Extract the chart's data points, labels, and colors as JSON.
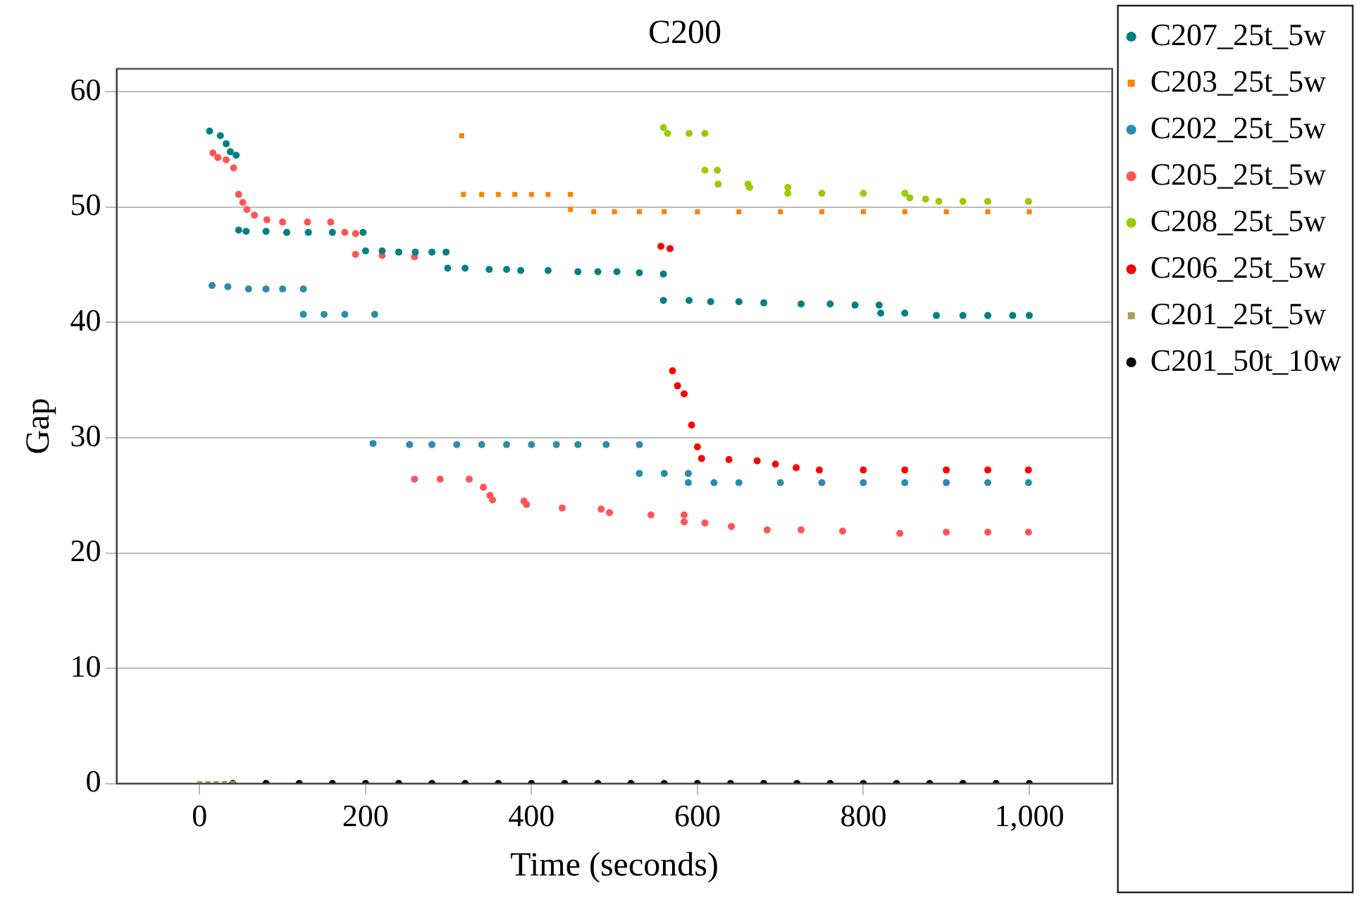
{
  "chart_data": {
    "type": "scatter",
    "title": "C200",
    "xlabel": "Time (seconds)",
    "ylabel": "Gap",
    "xlim": [
      -100,
      1100
    ],
    "xticks": [
      0,
      200,
      400,
      600,
      800,
      {
        "value": 1000,
        "label": "1,000"
      }
    ],
    "ylim": [
      0,
      62
    ],
    "yticks": [
      0,
      10,
      20,
      30,
      40,
      50,
      60
    ],
    "grid": "y",
    "legend": "right",
    "marker": "circle",
    "series": [
      {
        "name": "C207_25t_5w",
        "color": "#008080",
        "x": [
          12,
          25,
          32,
          37,
          44,
          47,
          56,
          80,
          105,
          131,
          160,
          197,
          200,
          220,
          240,
          260,
          280,
          297,
          299,
          320,
          349,
          370,
          387,
          420,
          456,
          480,
          503,
          530,
          559,
          559,
          590,
          616,
          650,
          680,
          725,
          760,
          790,
          819,
          821,
          850,
          888,
          920,
          950,
          980,
          1000
        ],
        "values": [
          56.6,
          56.2,
          55.5,
          54.8,
          54.5,
          48.0,
          47.9,
          47.9,
          47.8,
          47.8,
          47.8,
          47.8,
          46.2,
          46.2,
          46.1,
          46.1,
          46.1,
          46.1,
          44.7,
          44.7,
          44.6,
          44.6,
          44.5,
          44.5,
          44.4,
          44.4,
          44.4,
          44.3,
          44.2,
          41.9,
          41.9,
          41.8,
          41.8,
          41.7,
          41.6,
          41.6,
          41.5,
          41.5,
          40.8,
          40.8,
          40.6,
          40.6,
          40.6,
          40.6,
          40.6
        ]
      },
      {
        "name": "C203_25t_5w",
        "color": "#ff8000",
        "marker": "square",
        "x": [
          316,
          318,
          340,
          360,
          380,
          400,
          420,
          447,
          447,
          475,
          500,
          530,
          560,
          600,
          650,
          700,
          750,
          800,
          850,
          900,
          950,
          1000
        ],
        "values": [
          56.2,
          51.1,
          51.1,
          51.1,
          51.1,
          51.1,
          51.1,
          51.1,
          49.8,
          49.6,
          49.6,
          49.6,
          49.6,
          49.6,
          49.6,
          49.6,
          49.6,
          49.6,
          49.6,
          49.6,
          49.6,
          49.6
        ]
      },
      {
        "name": "C202_25t_5w",
        "color": "#2b8cab",
        "x": [
          15,
          34,
          59,
          80,
          100,
          125,
          125,
          150,
          175,
          211,
          209,
          253,
          280,
          310,
          340,
          370,
          400,
          430,
          456,
          490,
          530,
          530,
          560,
          589,
          589,
          620,
          650,
          700,
          750,
          800,
          850,
          900,
          950,
          999
        ],
        "values": [
          43.2,
          43.1,
          42.9,
          42.9,
          42.9,
          42.9,
          40.7,
          40.7,
          40.7,
          40.7,
          29.5,
          29.4,
          29.4,
          29.4,
          29.4,
          29.4,
          29.4,
          29.4,
          29.4,
          29.4,
          29.4,
          26.9,
          26.9,
          26.9,
          26.1,
          26.1,
          26.1,
          26.1,
          26.1,
          26.1,
          26.1,
          26.1,
          26.1,
          26.1
        ]
      },
      {
        "name": "C205_25t_5w",
        "color": "#ff5555",
        "x": [
          16,
          22,
          32,
          41,
          47,
          52,
          57,
          66,
          81,
          100,
          130,
          158,
          175,
          188,
          188,
          220,
          259,
          259,
          290,
          325,
          342,
          350,
          353,
          391,
          394,
          437,
          484,
          494,
          544,
          584,
          584,
          609,
          641,
          684,
          725,
          775,
          844,
          900,
          950,
          999
        ],
        "values": [
          54.7,
          54.3,
          54.1,
          53.4,
          51.1,
          50.4,
          49.8,
          49.3,
          48.9,
          48.7,
          48.7,
          48.7,
          47.8,
          47.7,
          45.9,
          45.8,
          45.7,
          26.4,
          26.4,
          26.4,
          25.7,
          25.0,
          24.6,
          24.5,
          24.2,
          23.9,
          23.8,
          23.5,
          23.3,
          23.3,
          22.7,
          22.6,
          22.3,
          22.0,
          22.0,
          21.9,
          21.7,
          21.8,
          21.8,
          21.8
        ]
      },
      {
        "name": "C208_25t_5w",
        "color": "#99cc00",
        "x": [
          559,
          564,
          590,
          609,
          609,
          624,
          625,
          661,
          663,
          709,
          709,
          750,
          800,
          850,
          856,
          875,
          891,
          920,
          950,
          999
        ],
        "values": [
          56.9,
          56.4,
          56.4,
          56.4,
          53.2,
          53.2,
          52.0,
          52.0,
          51.7,
          51.7,
          51.2,
          51.2,
          51.2,
          51.2,
          50.8,
          50.7,
          50.5,
          50.5,
          50.5,
          50.5
        ]
      },
      {
        "name": "C206_25t_5w",
        "color": "#ff0000",
        "x": [
          556,
          567,
          570,
          576,
          584,
          593,
          600,
          605,
          638,
          672,
          694,
          719,
          747,
          800,
          850,
          900,
          950,
          999
        ],
        "values": [
          46.6,
          46.4,
          35.8,
          34.5,
          33.8,
          31.1,
          29.2,
          28.2,
          28.1,
          28.0,
          27.7,
          27.4,
          27.2,
          27.2,
          27.2,
          27.2,
          27.2,
          27.2
        ]
      },
      {
        "name": "C201_25t_5w",
        "color": "#aaa060",
        "marker": "square",
        "x": [
          0,
          10,
          20,
          30,
          40
        ],
        "values": [
          0,
          0,
          0,
          0,
          0
        ]
      },
      {
        "name": "C201_50t_10w",
        "color": "#000000",
        "x": [
          40,
          80,
          120,
          160,
          200,
          240,
          280,
          320,
          360,
          400,
          440,
          480,
          520,
          560,
          600,
          640,
          680,
          720,
          760,
          800,
          840,
          880,
          920,
          960,
          1000
        ],
        "values": [
          0,
          0,
          0,
          0,
          0,
          0,
          0,
          0,
          0,
          0,
          0,
          0,
          0,
          0,
          0,
          0,
          0,
          0,
          0,
          0,
          0,
          0,
          0,
          0,
          0
        ]
      }
    ]
  }
}
